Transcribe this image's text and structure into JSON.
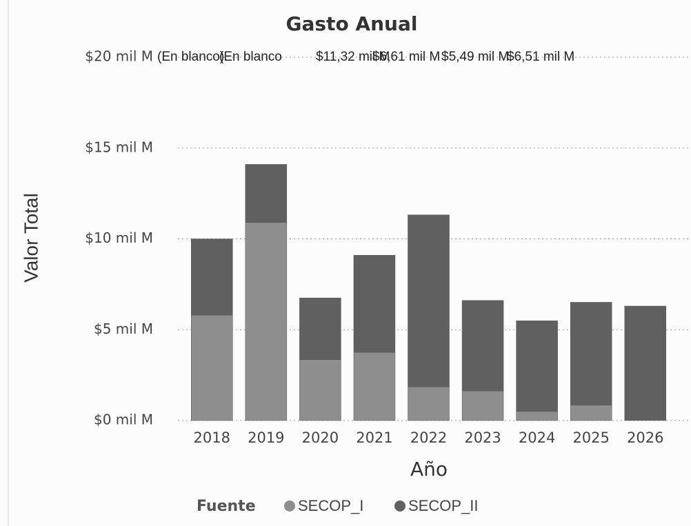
{
  "chart_data": {
    "type": "stacked_bar",
    "title": "Gasto Anual",
    "x_label": "Año",
    "y_label": "Valor Total",
    "categories": [
      "2018",
      "2019",
      "2020",
      "2021",
      "2022",
      "2023",
      "2024",
      "2025",
      "2026"
    ],
    "series": [
      {
        "name": "SECOP_I",
        "color": "#8e8e8e",
        "values": [
          5.8,
          10.9,
          3.35,
          3.75,
          1.86,
          1.63,
          0.5,
          0.85,
          0
        ]
      },
      {
        "name": "SECOP_II",
        "color": "#606060",
        "values": [
          4.2,
          3.2,
          3.4,
          5.35,
          9.46,
          4.98,
          4.99,
          5.66,
          6.3
        ]
      }
    ],
    "legend_title": "Fuente",
    "annotations": [
      "(En blanco)",
      "(En blanco",
      "$11,32 mil M",
      "$6,61 mil M",
      "$5,49 mil M",
      "$6,51 mil M"
    ],
    "ylim": [
      0,
      20
    ],
    "yticks": [
      {
        "value": 0,
        "label": "$0 mil M"
      },
      {
        "value": 5,
        "label": "$5 mil M"
      },
      {
        "value": 10,
        "label": "$10 mil M"
      },
      {
        "value": 15,
        "label": "$15 mil M"
      },
      {
        "value": 20,
        "label": "$20 mil M"
      }
    ],
    "grid": true
  }
}
